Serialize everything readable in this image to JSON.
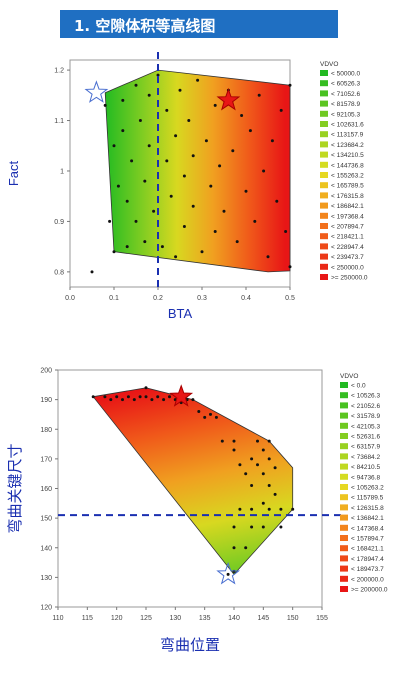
{
  "header": {
    "title": "1. 空隙体积等高线图"
  },
  "colors": {
    "header_bg": "#1f6fc2",
    "star_outline": "#4a6fd0",
    "dashed_line": "#1a2fb0",
    "axis_title": "#1a2fb0",
    "gradient": [
      "#22bb22",
      "#7ccc22",
      "#d8d820",
      "#f0a020",
      "#f05a1a",
      "#e81616"
    ]
  },
  "chart_data": [
    {
      "type": "contour",
      "title": "",
      "xlabel": "BTA",
      "ylabel": "Fact",
      "xlim": [
        0.0,
        0.5
      ],
      "ylim": [
        0.77,
        1.22
      ],
      "xticks": [
        "0.0",
        "0.1",
        "0.2",
        "0.3",
        "0.4",
        "0.5"
      ],
      "yticks": [
        "0.8",
        "0.9",
        "1",
        "1.1",
        "1.2"
      ],
      "reference_line_x": 0.2,
      "legend_title": "VDVO",
      "legend": [
        "< 50000.0",
        "< 60526.3",
        "< 71052.6",
        "< 81578.9",
        "< 92105.3",
        "< 102631.6",
        "< 113157.9",
        "< 123684.2",
        "< 134210.5",
        "< 144736.8",
        "< 155263.2",
        "< 165789.5",
        "< 176315.8",
        "< 186842.1",
        "< 197368.4",
        "< 207894.7",
        "< 218421.1",
        "< 228947.4",
        "< 239473.7",
        "< 250000.0",
        ">= 250000.0"
      ],
      "legend_colors": [
        "#22b922",
        "#35bd22",
        "#48c122",
        "#5cc522",
        "#70c922",
        "#84cd22",
        "#98d122",
        "#acd522",
        "#c0d922",
        "#d4dc22",
        "#e6d822",
        "#ecc420",
        "#f0ae20",
        "#f19a1e",
        "#f2851d",
        "#f2701c",
        "#f05c1a",
        "#ee4a19",
        "#ec3818",
        "#ea2817",
        "#e81616"
      ],
      "region": [
        [
          0.08,
          1.155
        ],
        [
          0.2,
          1.2
        ],
        [
          0.5,
          1.17
        ],
        [
          0.5,
          0.802
        ],
        [
          0.45,
          0.8
        ],
        [
          0.1,
          0.84
        ]
      ],
      "stars": [
        [
          0.06,
          1.155
        ],
        [
          0.36,
          1.14
        ]
      ],
      "points": [
        [
          0.05,
          0.8
        ],
        [
          0.08,
          1.13
        ],
        [
          0.09,
          0.9
        ],
        [
          0.1,
          1.05
        ],
        [
          0.1,
          0.84
        ],
        [
          0.11,
          0.97
        ],
        [
          0.12,
          1.08
        ],
        [
          0.12,
          1.14
        ],
        [
          0.13,
          0.94
        ],
        [
          0.13,
          0.85
        ],
        [
          0.14,
          1.02
        ],
        [
          0.15,
          1.17
        ],
        [
          0.15,
          0.9
        ],
        [
          0.16,
          1.1
        ],
        [
          0.17,
          0.98
        ],
        [
          0.17,
          0.86
        ],
        [
          0.18,
          1.05
        ],
        [
          0.18,
          1.15
        ],
        [
          0.19,
          0.92
        ],
        [
          0.2,
          1.19
        ],
        [
          0.21,
          0.85
        ],
        [
          0.22,
          1.02
        ],
        [
          0.22,
          1.12
        ],
        [
          0.23,
          0.95
        ],
        [
          0.24,
          1.07
        ],
        [
          0.24,
          0.83
        ],
        [
          0.25,
          1.16
        ],
        [
          0.26,
          0.99
        ],
        [
          0.26,
          0.89
        ],
        [
          0.27,
          1.1
        ],
        [
          0.28,
          1.03
        ],
        [
          0.28,
          0.93
        ],
        [
          0.29,
          1.18
        ],
        [
          0.3,
          0.84
        ],
        [
          0.31,
          1.06
        ],
        [
          0.32,
          0.97
        ],
        [
          0.33,
          1.13
        ],
        [
          0.33,
          0.88
        ],
        [
          0.34,
          1.01
        ],
        [
          0.35,
          0.92
        ],
        [
          0.36,
          1.16
        ],
        [
          0.37,
          1.04
        ],
        [
          0.38,
          0.86
        ],
        [
          0.39,
          1.11
        ],
        [
          0.4,
          0.96
        ],
        [
          0.41,
          1.08
        ],
        [
          0.42,
          0.9
        ],
        [
          0.43,
          1.15
        ],
        [
          0.44,
          1.0
        ],
        [
          0.45,
          0.83
        ],
        [
          0.46,
          1.06
        ],
        [
          0.47,
          0.94
        ],
        [
          0.48,
          1.12
        ],
        [
          0.49,
          0.88
        ],
        [
          0.5,
          0.81
        ],
        [
          0.5,
          1.17
        ]
      ]
    },
    {
      "type": "contour",
      "title": "",
      "xlabel": "弯曲位置",
      "ylabel": "弯曲关键尺寸",
      "xlim": [
        110,
        155
      ],
      "ylim": [
        120,
        200
      ],
      "xticks": [
        "110",
        "115",
        "120",
        "125",
        "130",
        "135",
        "140",
        "145",
        "150",
        "155"
      ],
      "yticks": [
        "120",
        "130",
        "140",
        "150",
        "160",
        "170",
        "180",
        "190",
        "200"
      ],
      "reference_line_y": 151,
      "legend_title": "VDVO",
      "legend": [
        "< 0.0",
        "< 10526.3",
        "< 21052.6",
        "< 31578.9",
        "< 42105.3",
        "< 52631.6",
        "< 63157.9",
        "< 73684.2",
        "< 84210.5",
        "< 94736.8",
        "< 105263.2",
        "< 115789.5",
        "< 126315.8",
        "< 136842.1",
        "< 147368.4",
        "< 157894.7",
        "< 168421.1",
        "< 178947.4",
        "< 189473.7",
        "< 200000.0",
        ">= 200000.0"
      ],
      "legend_colors": [
        "#22b922",
        "#35bd22",
        "#48c122",
        "#5cc522",
        "#70c922",
        "#84cd22",
        "#98d122",
        "#acd522",
        "#c0d922",
        "#d4dc22",
        "#e6d822",
        "#ecc420",
        "#f0ae20",
        "#f19a1e",
        "#f2851d",
        "#f2701c",
        "#f05c1a",
        "#ee4a19",
        "#ec3818",
        "#ea2817",
        "#e81616"
      ],
      "region": [
        [
          116,
          191
        ],
        [
          125,
          194
        ],
        [
          133,
          190
        ],
        [
          146,
          176
        ],
        [
          150,
          167
        ],
        [
          150,
          153
        ],
        [
          140,
          131
        ]
      ],
      "stars": [
        [
          131,
          191
        ],
        [
          139,
          131
        ]
      ],
      "points": [
        [
          116,
          191
        ],
        [
          118,
          191
        ],
        [
          119,
          190
        ],
        [
          120,
          191
        ],
        [
          121,
          190
        ],
        [
          122,
          191
        ],
        [
          123,
          190
        ],
        [
          124,
          191
        ],
        [
          125,
          191
        ],
        [
          125,
          194
        ],
        [
          126,
          190
        ],
        [
          127,
          191
        ],
        [
          128,
          190
        ],
        [
          129,
          191
        ],
        [
          130,
          190
        ],
        [
          131,
          189
        ],
        [
          132,
          190
        ],
        [
          133,
          190
        ],
        [
          134,
          186
        ],
        [
          135,
          184
        ],
        [
          136,
          185
        ],
        [
          137,
          184
        ],
        [
          138,
          176
        ],
        [
          140,
          176
        ],
        [
          140,
          173
        ],
        [
          141,
          168
        ],
        [
          142,
          165
        ],
        [
          143,
          170
        ],
        [
          143,
          161
        ],
        [
          144,
          176
        ],
        [
          144,
          168
        ],
        [
          145,
          165
        ],
        [
          145,
          173
        ],
        [
          146,
          176
        ],
        [
          146,
          170
        ],
        [
          146,
          161
        ],
        [
          147,
          167
        ],
        [
          147,
          158
        ],
        [
          145,
          155
        ],
        [
          141,
          153
        ],
        [
          143,
          153
        ],
        [
          146,
          153
        ],
        [
          148,
          153
        ],
        [
          150,
          153
        ],
        [
          140,
          147
        ],
        [
          143,
          147
        ],
        [
          145,
          147
        ],
        [
          148,
          147
        ],
        [
          140,
          140
        ],
        [
          142,
          140
        ],
        [
          140,
          132
        ],
        [
          139,
          131
        ]
      ]
    }
  ]
}
